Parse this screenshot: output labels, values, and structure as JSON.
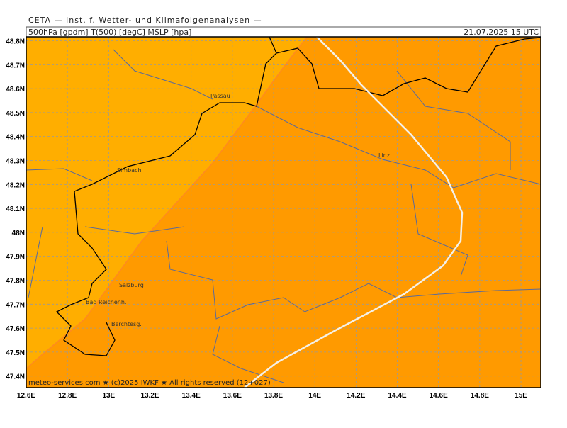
{
  "header": {
    "title": "CETA — Inst. f. Wetter- und Klimafolgenanalysen —",
    "parameters": "500hPa [gpdm] T(500) [degC] MSLP [hpa]",
    "valid_time": "21.07.2025 15 UTC"
  },
  "map": {
    "xticks": [
      "12.6E",
      "12.8E",
      "13E",
      "13.2E",
      "13.4E",
      "13.6E",
      "13.8E",
      "14E",
      "14.2E",
      "14.4E",
      "14.6E",
      "14.8E",
      "15E"
    ],
    "yticks": [
      "48.8N",
      "48.7N",
      "48.6N",
      "48.5N",
      "48.4N",
      "48.3N",
      "48.2N",
      "48.1N",
      "48N",
      "47.9N",
      "47.8N",
      "47.7N",
      "47.6N",
      "47.5N",
      "47.4N"
    ],
    "places": [
      "Passau",
      "Simbach",
      "Linz",
      "Salzburg",
      "Bad Reichenh.",
      "Berchtesg."
    ],
    "footer": "meteo-services.com ★ (c)2025 IWKF ★ All rights reserved (12+027)"
  }
}
